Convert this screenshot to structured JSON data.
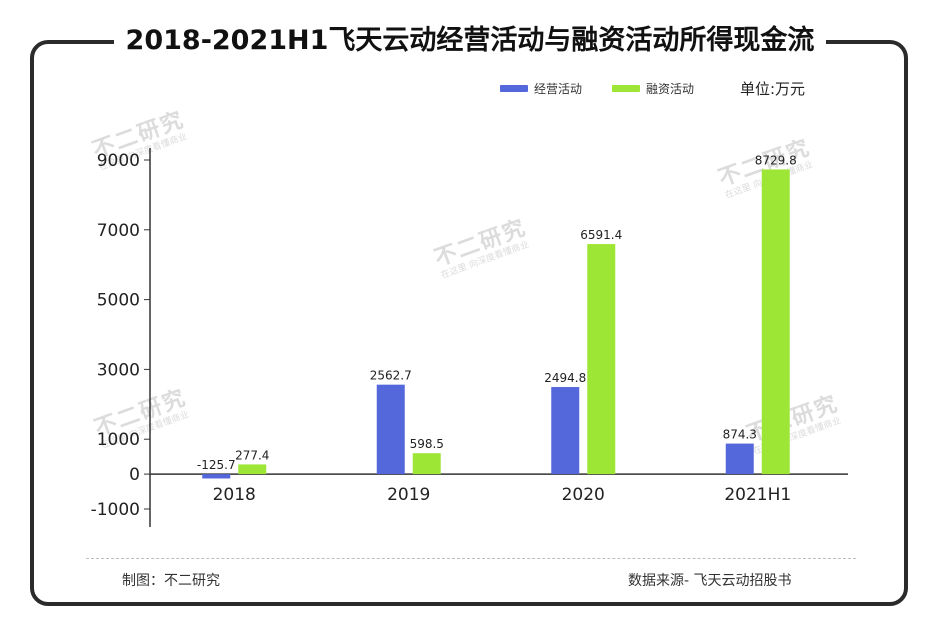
{
  "header": {
    "title": "2018-2021H1飞天云动经营活动与融资活动所得现金流"
  },
  "unit_label": "单位:万元",
  "colors": {
    "operating": "#5468DB",
    "financing": "#9EE635",
    "frame": "#2b2b2b"
  },
  "watermark": {
    "brand": "不二研究",
    "slogan": "在这里 向深度看懂商业"
  },
  "footer": {
    "maker": "制图：不二研究",
    "source": "数据来源- 飞天云动招股书"
  },
  "chart_data": {
    "type": "bar",
    "title": "2018-2021H1飞天云动经营活动与融资活动所得现金流",
    "xlabel": "",
    "ylabel": "单位:万元",
    "categories": [
      "2018",
      "2019",
      "2020",
      "2021H1"
    ],
    "series": [
      {
        "name": "经营活动",
        "values": [
          -125.7,
          2562.7,
          2494.8,
          874.3
        ],
        "labels": [
          "-125.7",
          "2562.7",
          "2494.8",
          "874.3"
        ]
      },
      {
        "name": "融资活动",
        "values": [
          277.4,
          598.5,
          6591.4,
          8729.8
        ],
        "labels": [
          "277.4",
          "598.5",
          "6591.4",
          "8729.8"
        ]
      }
    ],
    "ylim": [
      -1000,
      9000
    ],
    "yticks": [
      9000,
      7000,
      5000,
      3000,
      1000,
      0,
      -1000
    ],
    "legend": "top-right",
    "grid": false
  }
}
